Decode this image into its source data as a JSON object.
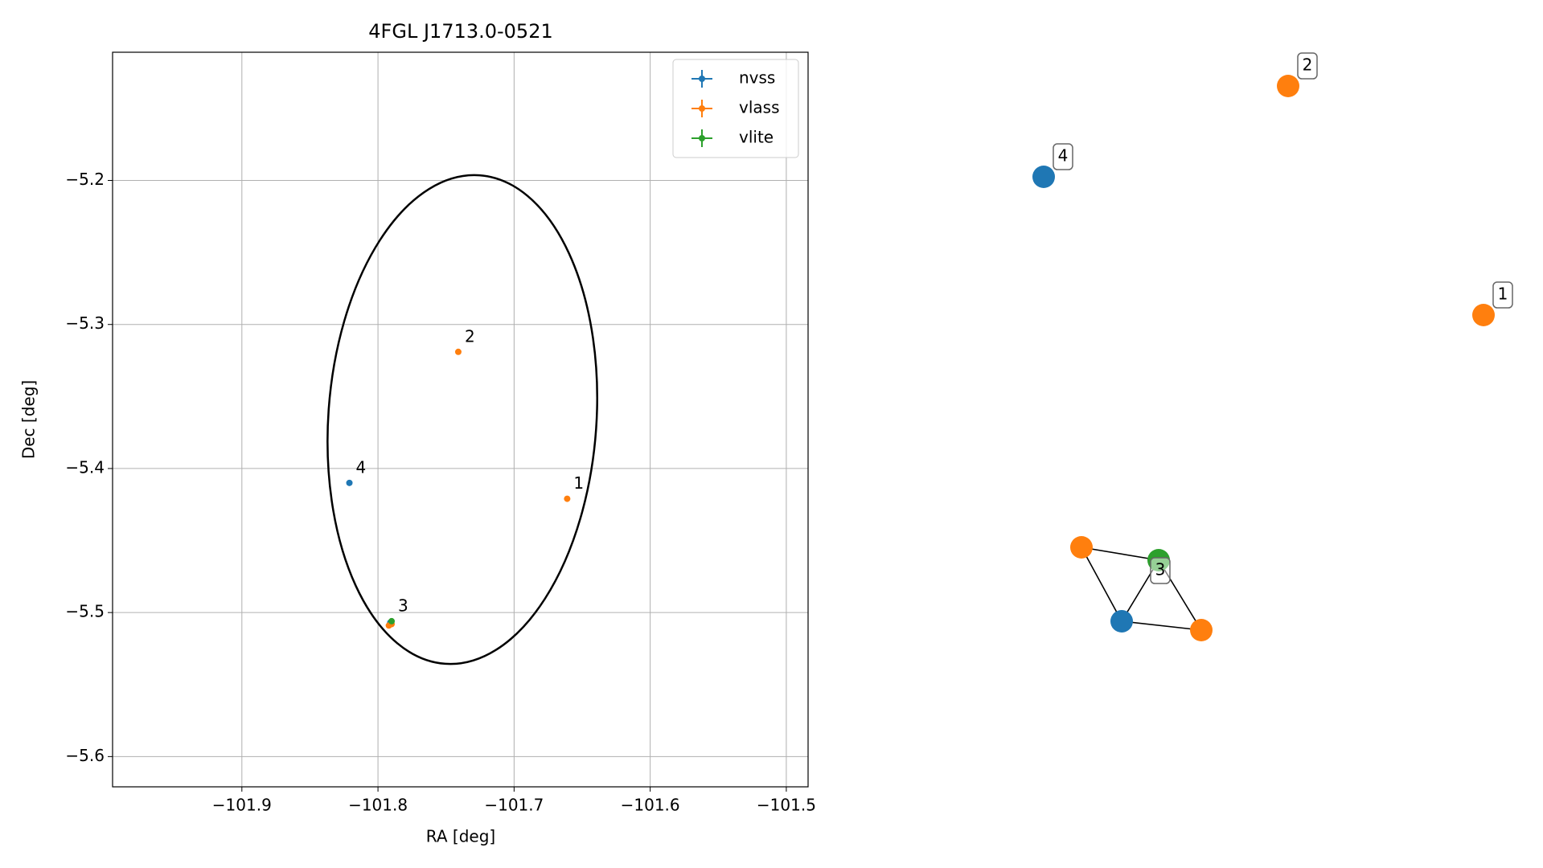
{
  "chart_data": [
    {
      "type": "scatter",
      "title": "4FGL J1713.0-0521",
      "x_label": "RA [deg]",
      "y_label": "Dec [deg]",
      "xlim": [
        -101.995,
        -101.484
      ],
      "ylim": [
        -5.621,
        -5.111
      ],
      "xticks": [
        {
          "value": -101.9,
          "label": "−101.9"
        },
        {
          "value": -101.8,
          "label": "−101.8"
        },
        {
          "value": -101.7,
          "label": "−101.7"
        },
        {
          "value": -101.6,
          "label": "−101.6"
        },
        {
          "value": -101.5,
          "label": "−101.5"
        }
      ],
      "yticks": [
        {
          "value": -5.2,
          "label": "−5.2"
        },
        {
          "value": -5.3,
          "label": "−5.3"
        },
        {
          "value": -5.4,
          "label": "−5.4"
        },
        {
          "value": -5.5,
          "label": "−5.5"
        },
        {
          "value": -5.6,
          "label": "−5.6"
        }
      ],
      "grid": true,
      "legend": "upper right",
      "series": [
        {
          "name": "nvss",
          "color": "#1f77b4",
          "x": [
            -101.821,
            -101.791
          ],
          "values": [
            -5.41,
            -5.507
          ]
        },
        {
          "name": "vlass",
          "color": "#ff7f0e",
          "x": [
            -101.661,
            -101.741,
            -101.792,
            -101.79
          ],
          "values": [
            -5.421,
            -5.319,
            -5.509,
            -5.508
          ]
        },
        {
          "name": "vlite",
          "color": "#2ca02c",
          "x": [
            -101.79
          ],
          "values": [
            -5.506
          ]
        }
      ],
      "annotations": [
        {
          "text": "1",
          "x": -101.661,
          "y": -5.421
        },
        {
          "text": "2",
          "x": -101.741,
          "y": -5.319
        },
        {
          "text": "3",
          "x": -101.79,
          "y": -5.506
        },
        {
          "text": "4",
          "x": -101.821,
          "y": -5.41
        }
      ],
      "ellipse": {
        "center_x": -101.738,
        "center_y": -5.366,
        "half_width": 0.0985,
        "half_height": 0.17,
        "color": "#000000"
      }
    },
    {
      "type": "network",
      "nodes": [
        {
          "color": "#1f77b4",
          "label": "4"
        },
        {
          "color": "#ff7f0e",
          "label": "2"
        },
        {
          "color": "#ff7f0e",
          "label": "1"
        },
        {
          "color": "#ff7f0e"
        },
        {
          "color": "#2ca02c",
          "label": "3"
        },
        {
          "color": "#1f77b4"
        },
        {
          "color": "#ff7f0e"
        }
      ],
      "edges": [
        [
          3,
          4
        ],
        [
          3,
          5
        ],
        [
          4,
          6
        ],
        [
          5,
          6
        ],
        [
          4,
          5
        ]
      ]
    }
  ]
}
